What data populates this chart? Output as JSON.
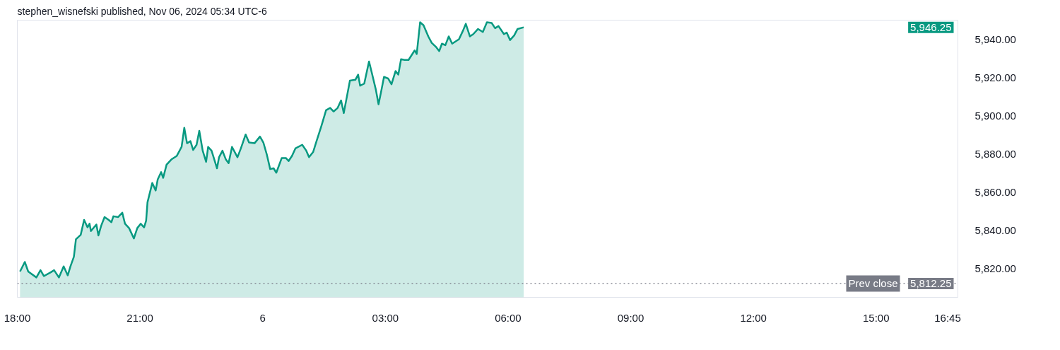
{
  "chart_data": {
    "type": "area",
    "title": "stephen_wisnefski published, Nov 06, 2024 05:34 UTC-6",
    "x": [
      "2024-11-05T18:04",
      "2024-11-05T18:11",
      "2024-11-05T18:16",
      "2024-11-05T18:28",
      "2024-11-05T18:34",
      "2024-11-05T18:39",
      "2024-11-05T18:49",
      "2024-11-05T18:54",
      "2024-11-05T19:01",
      "2024-11-05T19:08",
      "2024-11-05T19:14",
      "2024-11-05T19:18",
      "2024-11-05T19:23",
      "2024-11-05T19:26",
      "2024-11-05T19:33",
      "2024-11-05T19:38",
      "2024-11-05T19:43",
      "2024-11-05T19:46",
      "2024-11-05T19:48",
      "2024-11-05T19:56",
      "2024-11-05T19:59",
      "2024-11-05T20:03",
      "2024-11-05T20:08",
      "2024-11-05T20:14",
      "2024-11-05T20:18",
      "2024-11-05T20:21",
      "2024-11-05T20:28",
      "2024-11-05T20:34",
      "2024-11-05T20:38",
      "2024-11-05T20:44",
      "2024-11-05T20:51",
      "2024-11-05T20:56",
      "2024-11-05T21:01",
      "2024-11-05T21:06",
      "2024-11-05T21:09",
      "2024-11-05T21:11",
      "2024-11-05T21:18",
      "2024-11-05T21:23",
      "2024-11-05T21:26",
      "2024-11-05T21:31",
      "2024-11-05T21:34",
      "2024-11-05T21:39",
      "2024-11-05T21:46",
      "2024-11-05T21:54",
      "2024-11-05T22:01",
      "2024-11-05T22:05",
      "2024-11-05T22:09",
      "2024-11-05T22:14",
      "2024-11-05T22:18",
      "2024-11-05T22:23",
      "2024-11-05T22:27",
      "2024-11-05T22:32",
      "2024-11-05T22:37",
      "2024-11-05T22:40",
      "2024-11-05T22:45",
      "2024-11-05T22:48",
      "2024-11-05T22:53",
      "2024-11-05T22:56",
      "2024-11-05T23:01",
      "2024-11-05T23:06",
      "2024-11-05T23:10",
      "2024-11-05T23:15",
      "2024-11-05T23:23",
      "2024-11-05T23:28",
      "2024-11-05T23:35",
      "2024-11-05T23:40",
      "2024-11-05T23:48",
      "2024-11-05T23:56",
      "2024-11-06T00:01",
      "2024-11-06T00:06",
      "2024-11-06T00:11",
      "2024-11-06T00:16",
      "2024-11-06T00:20",
      "2024-11-06T00:28",
      "2024-11-06T00:34",
      "2024-11-06T00:38",
      "2024-11-06T00:43",
      "2024-11-06T00:48",
      "2024-11-06T00:58",
      "2024-11-06T01:04",
      "2024-11-06T01:08",
      "2024-11-06T01:14",
      "2024-11-06T01:19",
      "2024-11-06T01:26",
      "2024-11-06T01:33",
      "2024-11-06T01:39",
      "2024-11-06T01:44",
      "2024-11-06T01:50",
      "2024-11-06T01:55",
      "2024-11-06T01:59",
      "2024-11-06T02:08",
      "2024-11-06T02:16",
      "2024-11-06T02:20",
      "2024-11-06T02:23",
      "2024-11-06T02:29",
      "2024-11-06T02:36",
      "2024-11-06T02:40",
      "2024-11-06T02:46",
      "2024-11-06T02:50",
      "2024-11-06T02:54",
      "2024-11-06T02:58",
      "2024-11-06T03:04",
      "2024-11-06T03:09",
      "2024-11-06T03:15",
      "2024-11-06T03:19",
      "2024-11-06T03:23",
      "2024-11-06T03:28",
      "2024-11-06T03:34",
      "2024-11-06T03:43",
      "2024-11-06T03:46",
      "2024-11-06T03:51",
      "2024-11-06T03:56",
      "2024-11-06T04:03",
      "2024-11-06T04:08",
      "2024-11-06T04:14",
      "2024-11-06T04:19",
      "2024-11-06T04:23",
      "2024-11-06T04:28",
      "2024-11-06T04:33",
      "2024-11-06T04:38",
      "2024-11-06T04:48",
      "2024-11-06T04:54",
      "2024-11-06T04:58",
      "2024-11-06T05:04",
      "2024-11-06T05:09",
      "2024-11-06T05:16",
      "2024-11-06T05:23",
      "2024-11-06T05:29",
      "2024-11-06T05:36",
      "2024-11-06T05:41",
      "2024-11-06T05:46",
      "2024-11-06T05:54",
      "2024-11-06T05:58",
      "2024-11-06T06:03",
      "2024-11-06T06:09",
      "2024-11-06T06:14",
      "2024-11-06T06:23"
    ],
    "series": [
      {
        "color": "#089981",
        "values": [
          5818.5,
          5823.5,
          5818.5,
          5815.4,
          5819.2,
          5816.1,
          5818.1,
          5819.2,
          5815.4,
          5821.2,
          5816.5,
          5821.2,
          5826.2,
          5835.4,
          5837.7,
          5845.5,
          5841.6,
          5843.5,
          5839.7,
          5843.1,
          5837.4,
          5842.4,
          5847.0,
          5845.5,
          5844.3,
          5847.4,
          5847.0,
          5849.3,
          5843.5,
          5841.2,
          5835.8,
          5841.2,
          5843.5,
          5841.6,
          5845.1,
          5854.7,
          5864.8,
          5860.9,
          5866.7,
          5870.5,
          5867.5,
          5874.4,
          5877.1,
          5879.0,
          5883.7,
          5893.7,
          5885.6,
          5886.7,
          5882.1,
          5884.8,
          5892.1,
          5881.7,
          5875.9,
          5883.7,
          5881.7,
          5878.3,
          5872.5,
          5878.3,
          5881.7,
          5877.1,
          5875.2,
          5883.7,
          5878.3,
          5882.9,
          5890.2,
          5886.0,
          5885.6,
          5889.1,
          5886.0,
          5879.8,
          5872.1,
          5872.5,
          5870.2,
          5877.9,
          5877.9,
          5876.3,
          5879.0,
          5882.9,
          5884.8,
          5881.7,
          5878.3,
          5881.0,
          5886.7,
          5894.5,
          5902.9,
          5904.1,
          5902.2,
          5904.1,
          5908.0,
          5901.4,
          5918.4,
          5918.8,
          5921.5,
          5915.7,
          5916.8,
          5928.4,
          5922.6,
          5913.7,
          5906.0,
          5913.0,
          5920.3,
          5919.5,
          5916.5,
          5923.4,
          5921.5,
          5929.6,
          5929.2,
          5929.2,
          5934.2,
          5932.3,
          5948.9,
          5947.3,
          5941.5,
          5938.1,
          5936.1,
          5933.8,
          5937.7,
          5936.9,
          5941.5,
          5937.7,
          5940.0,
          5944.6,
          5948.1,
          5941.5,
          5942.7,
          5945.4,
          5943.8,
          5948.9,
          5948.5,
          5945.8,
          5946.9,
          5942.7,
          5943.5,
          5939.6,
          5942.0,
          5945.4,
          5946.25
        ]
      }
    ],
    "xlim": [
      "2024-11-05T18:00",
      "2024-11-06T17:00"
    ],
    "xticks": [
      {
        "value": "2024-11-05T18:00",
        "label": "18:00"
      },
      {
        "value": "2024-11-05T21:00",
        "label": "21:00"
      },
      {
        "value": "2024-11-06T00:00",
        "label": "6"
      },
      {
        "value": "2024-11-06T03:00",
        "label": "03:00"
      },
      {
        "value": "2024-11-06T06:00",
        "label": "06:00"
      },
      {
        "value": "2024-11-06T09:00",
        "label": "09:00"
      },
      {
        "value": "2024-11-06T12:00",
        "label": "12:00"
      },
      {
        "value": "2024-11-06T15:00",
        "label": "15:00"
      },
      {
        "value": "2024-11-06T16:45",
        "label": "16:45"
      }
    ],
    "ylim": [
      5805,
      5950
    ],
    "yticks": [
      {
        "value": 5820,
        "label": "5,820.00"
      },
      {
        "value": 5840,
        "label": "5,840.00"
      },
      {
        "value": 5860,
        "label": "5,860.00"
      },
      {
        "value": 5880,
        "label": "5,880.00"
      },
      {
        "value": 5900,
        "label": "5,900.00"
      },
      {
        "value": 5920,
        "label": "5,920.00"
      },
      {
        "value": 5940,
        "label": "5,940.00"
      }
    ],
    "ref_lines": [
      {
        "axis": "y",
        "value": 5812.25,
        "label": "Prev close",
        "color": "#787b86",
        "line_style": "dotted"
      }
    ],
    "annotations": [
      "5,946.25",
      {
        "text": "5,812.25",
        "y": 5812.25
      }
    ],
    "grid": false
  }
}
